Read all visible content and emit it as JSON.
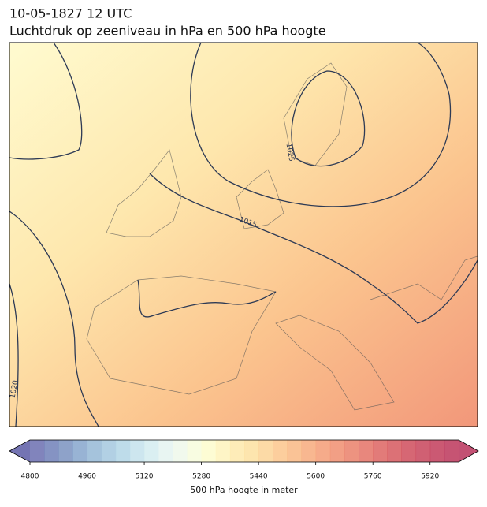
{
  "header": {
    "title": "10-05-1827 12 UTC",
    "subtitle": "Luchtdruk op zeeniveau in hPa en 500 hPa hoogte"
  },
  "contour_labels": [
    "1025",
    "1015",
    "1020"
  ],
  "colorbar": {
    "lim": [
      4800,
      6000
    ],
    "ticks": [
      4800,
      4960,
      5120,
      5280,
      5440,
      5600,
      5760,
      5920
    ],
    "label": "500 hPa hoogte in meter",
    "extend_colors": [
      "#5c5ca6",
      "#b8325a"
    ],
    "colors": [
      "#6b6eb0",
      "#7080b8",
      "#7a92c0",
      "#86a6cc",
      "#95b8d6",
      "#a4c8df",
      "#b3d6e6",
      "#c4e2ec",
      "#d4ecf0",
      "#e4f3f0",
      "#eff8ea",
      "#f7fbdc",
      "#fdfbcc",
      "#fef3bc",
      "#fee9ac",
      "#fde0a0",
      "#fcd496",
      "#fbc68c",
      "#f9b884",
      "#f7aa7c",
      "#f49c76",
      "#f08e70",
      "#ea806a",
      "#e47266",
      "#dd6462",
      "#d6585e",
      "#cf4c5c",
      "#c8445a",
      "#c23c5a",
      "#bc365a"
    ]
  }
}
